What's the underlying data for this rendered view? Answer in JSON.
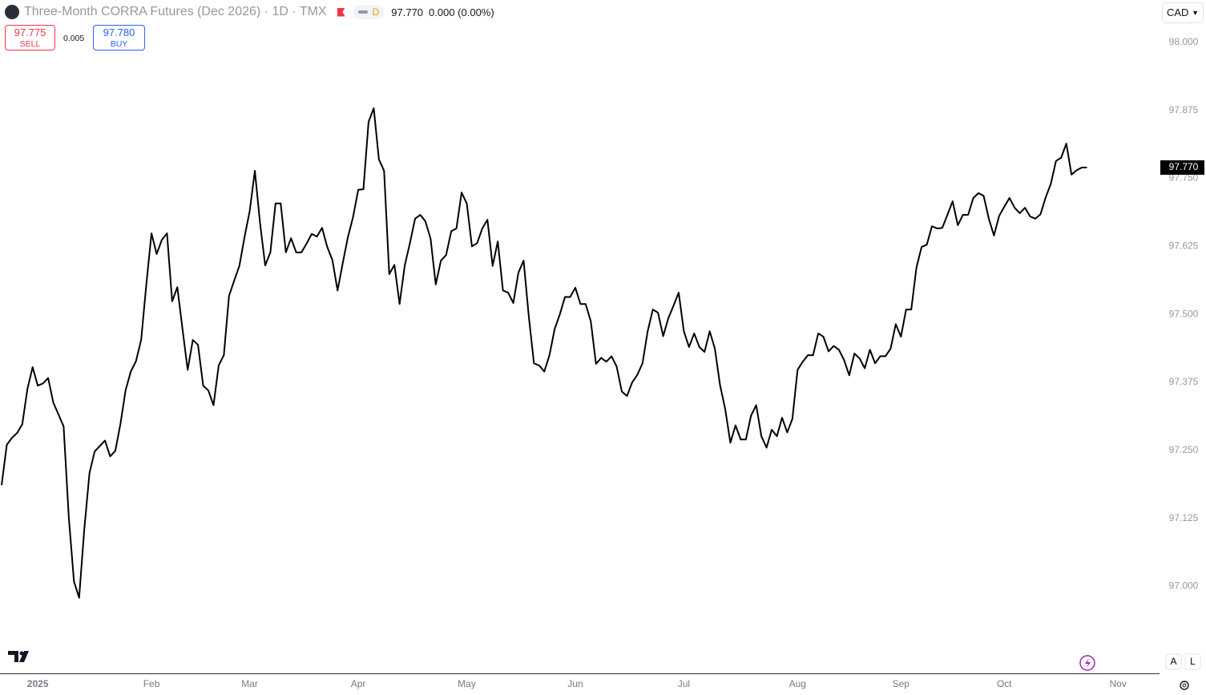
{
  "header": {
    "title": "Three-Month CORRA Futures (Dec 2026) · 1D · TMX",
    "badge": "D",
    "last": "97.770",
    "change": "0.000 (0.00%)",
    "sell_price": "97.775",
    "sell_label": "SELL",
    "spread": "0.005",
    "buy_price": "97.780",
    "buy_label": "BUY",
    "currency": "CAD",
    "buttons": [
      "A",
      "L"
    ]
  },
  "chart_data": {
    "type": "line",
    "color": "#000000",
    "last_price_tag": "97.770",
    "categories": [
      null,
      null,
      null,
      null,
      null,
      null,
      null,
      "2025",
      null,
      null,
      null,
      null,
      null,
      null,
      null,
      null,
      null,
      null,
      null,
      null,
      null,
      null,
      null,
      null,
      null,
      null,
      null,
      null,
      null,
      "Feb",
      null,
      null,
      null,
      null,
      null,
      null,
      null,
      null,
      null,
      null,
      null,
      null,
      null,
      null,
      null,
      null,
      null,
      null,
      "Mar",
      null,
      null,
      null,
      null,
      null,
      null,
      null,
      null,
      null,
      null,
      null,
      null,
      null,
      null,
      null,
      null,
      null,
      null,
      null,
      null,
      "Apr",
      null,
      null,
      null,
      null,
      null,
      null,
      null,
      null,
      null,
      null,
      null,
      null,
      null,
      null,
      null,
      null,
      null,
      null,
      null,
      null,
      "May",
      null,
      null,
      null,
      null,
      null,
      null,
      null,
      null,
      null,
      null,
      null,
      null,
      null,
      null,
      null,
      null,
      null,
      null,
      null,
      null,
      "Jun",
      null,
      null,
      null,
      null,
      null,
      null,
      null,
      null,
      null,
      null,
      null,
      null,
      null,
      null,
      null,
      null,
      null,
      null,
      null,
      null,
      "Jul",
      null,
      null,
      null,
      null,
      null,
      null,
      null,
      null,
      null,
      null,
      null,
      null,
      null,
      null,
      null,
      null,
      null,
      null,
      null,
      null,
      null,
      "Aug",
      null,
      null,
      null,
      null,
      null,
      null,
      null,
      null,
      null,
      null,
      null,
      null,
      null,
      null,
      null,
      null,
      null,
      null,
      null,
      "Sep",
      null,
      null,
      null,
      null,
      null,
      null,
      null,
      null,
      null,
      null,
      null,
      null,
      null,
      null,
      null,
      null,
      null,
      null,
      null,
      "Oct",
      null,
      null,
      null,
      null,
      null,
      null,
      null,
      null,
      null,
      null,
      null,
      null,
      null,
      null,
      null,
      null,
      null,
      null,
      null,
      null,
      null,
      "Nov"
    ],
    "values": [
      97.186,
      97.26,
      97.273,
      97.282,
      97.298,
      97.363,
      97.403,
      97.369,
      97.373,
      97.383,
      97.338,
      97.316,
      97.294,
      97.127,
      97.009,
      96.979,
      97.105,
      97.208,
      97.248,
      97.258,
      97.268,
      97.239,
      97.249,
      97.299,
      97.361,
      97.395,
      97.414,
      97.453,
      97.555,
      97.649,
      97.611,
      97.637,
      97.649,
      97.524,
      97.55,
      97.473,
      97.398,
      97.453,
      97.444,
      97.369,
      97.36,
      97.333,
      97.406,
      97.425,
      97.534,
      97.562,
      97.589,
      97.642,
      97.69,
      97.764,
      97.668,
      97.59,
      97.614,
      97.704,
      97.704,
      97.614,
      97.64,
      97.614,
      97.614,
      97.63,
      97.648,
      97.643,
      97.659,
      97.624,
      97.6,
      97.544,
      97.594,
      97.642,
      97.679,
      97.729,
      97.73,
      97.854,
      97.879,
      97.785,
      97.764,
      97.574,
      97.591,
      97.519,
      97.59,
      97.631,
      97.676,
      97.683,
      97.671,
      97.639,
      97.555,
      97.599,
      97.609,
      97.653,
      97.658,
      97.724,
      97.704,
      97.625,
      97.631,
      97.658,
      97.674,
      97.589,
      97.634,
      97.544,
      97.54,
      97.521,
      97.577,
      97.599,
      97.496,
      97.41,
      97.406,
      97.395,
      97.425,
      97.473,
      97.5,
      97.532,
      97.532,
      97.549,
      97.519,
      97.519,
      97.487,
      97.409,
      97.42,
      97.413,
      97.423,
      97.404,
      97.358,
      97.35,
      97.375,
      97.389,
      97.41,
      97.469,
      97.509,
      97.503,
      97.46,
      97.493,
      97.516,
      97.54,
      97.469,
      97.44,
      97.465,
      97.44,
      97.431,
      97.469,
      97.437,
      97.37,
      97.326,
      97.264,
      97.296,
      97.27,
      97.27,
      97.314,
      97.333,
      97.276,
      97.255,
      97.288,
      97.276,
      97.31,
      97.283,
      97.308,
      97.398,
      97.413,
      97.425,
      97.425,
      97.465,
      97.459,
      97.432,
      97.442,
      97.435,
      97.416,
      97.388,
      97.428,
      97.419,
      97.401,
      97.435,
      97.41,
      97.423,
      97.423,
      97.437,
      97.482,
      97.459,
      97.509,
      97.509,
      97.586,
      97.624,
      97.628,
      97.662,
      97.658,
      97.659,
      97.683,
      97.708,
      97.664,
      97.683,
      97.683,
      97.714,
      97.723,
      97.718,
      97.676,
      97.645,
      97.681,
      97.698,
      97.714,
      97.696,
      97.686,
      97.696,
      97.68,
      97.676,
      97.684,
      97.715,
      97.74,
      97.782,
      97.788,
      97.814,
      97.757,
      97.765,
      97.77,
      97.77,
      null,
      null,
      null,
      null,
      null,
      null
    ],
    "ylim": [
      96.84,
      98.078
    ],
    "yticks": [
      {
        "value": 97,
        "label": "97.000"
      },
      {
        "value": 97.125,
        "label": "97.125"
      },
      {
        "value": 97.25,
        "label": "97.250"
      },
      {
        "value": 97.375,
        "label": "97.375"
      },
      {
        "value": 97.5,
        "label": "97.500"
      },
      {
        "value": 97.625,
        "label": "97.625"
      },
      {
        "value": 97.75,
        "label": "97.750"
      },
      {
        "value": 97.875,
        "label": "97.875"
      },
      {
        "value": 98,
        "label": "98.000"
      }
    ],
    "grid": false
  }
}
